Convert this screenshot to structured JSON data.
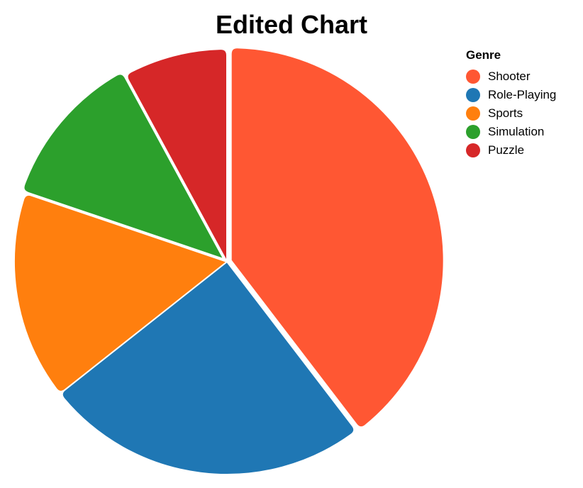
{
  "chart_data": {
    "type": "pie",
    "title": "Edited Chart",
    "legend_title": "Genre",
    "legend_position": "top-right",
    "categories": [
      "Shooter",
      "Role-Playing",
      "Sports",
      "Simulation",
      "Puzzle"
    ],
    "values": [
      40,
      25,
      16,
      12,
      8
    ],
    "colors": [
      "#ff5733",
      "#1f77b4",
      "#ff7f0e",
      "#2ca02c",
      "#d62728"
    ],
    "exploded_slices": [
      "Shooter",
      "Simulation"
    ]
  }
}
